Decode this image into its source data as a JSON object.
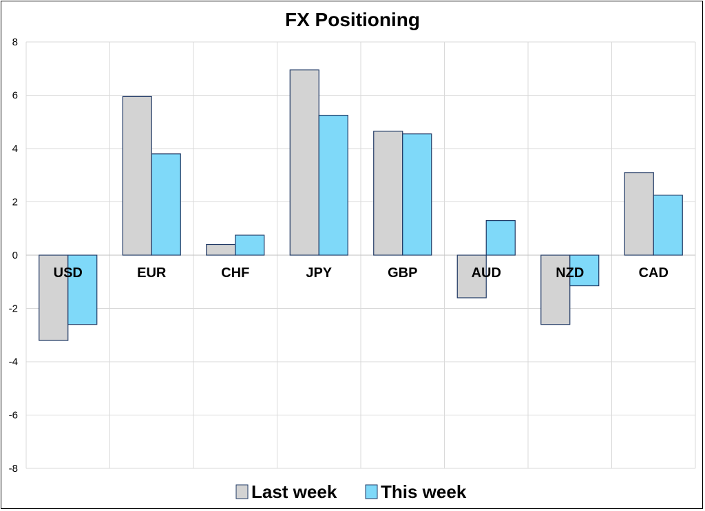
{
  "chart_data": {
    "type": "bar",
    "title": "FX Positioning",
    "categories": [
      "USD",
      "EUR",
      "CHF",
      "JPY",
      "GBP",
      "AUD",
      "NZD",
      "CAD"
    ],
    "series": [
      {
        "name": "Last week",
        "values": [
          -3.2,
          5.95,
          0.4,
          6.95,
          4.65,
          -1.6,
          -2.6,
          3.1
        ],
        "color": "#d3d3d3"
      },
      {
        "name": "This week",
        "values": [
          -2.6,
          3.8,
          0.75,
          5.25,
          4.55,
          1.3,
          -1.15,
          2.25
        ],
        "color": "#7fd9f9"
      }
    ],
    "ylim": [
      -8,
      8
    ],
    "yticks": [
      8,
      6,
      4,
      2,
      0,
      -2,
      -4,
      -6,
      -8
    ],
    "grid": true,
    "legend_position": "bottom",
    "bar_outline_color": "#1f3864"
  }
}
